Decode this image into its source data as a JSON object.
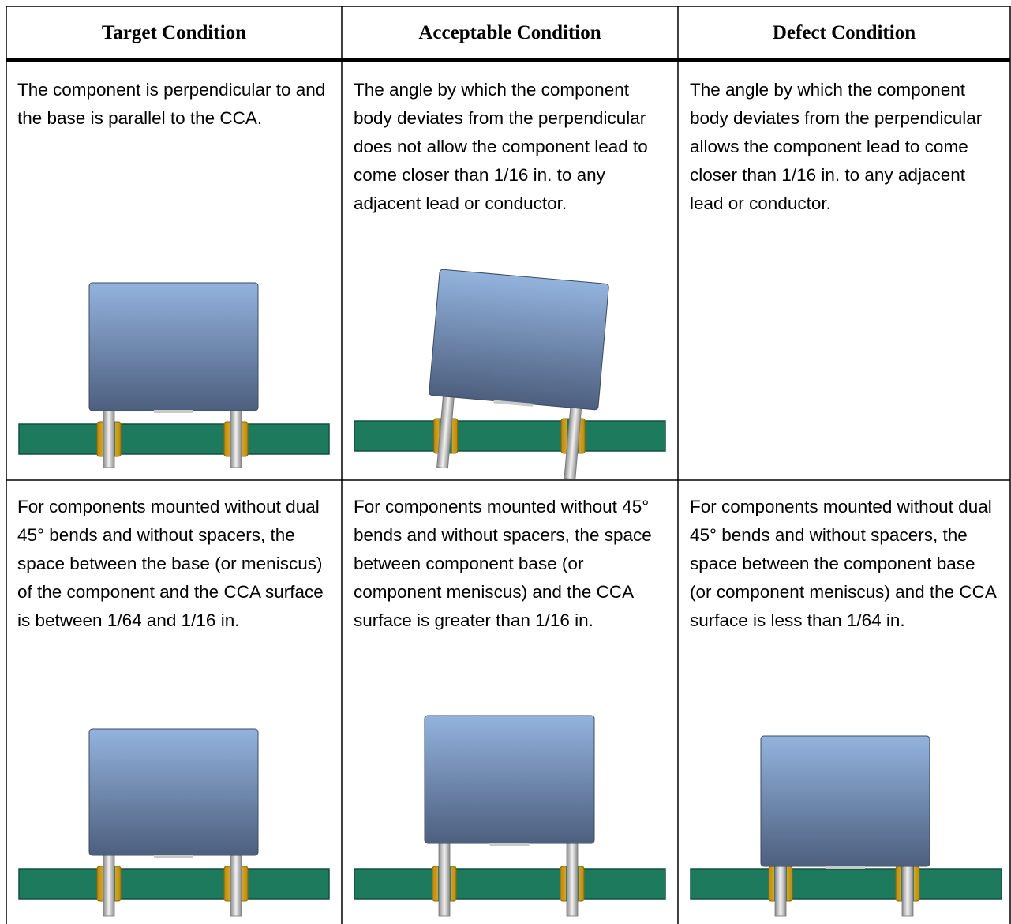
{
  "table": {
    "header": [
      "Target Condition",
      "Acceptable Condition",
      "Defect Condition"
    ],
    "rows": [
      [
        "The component is perpendicular to and the base is parallel to the CCA.",
        "The angle by which the component body deviates from the perpendicular does not allow the component lead to come closer than 1/16 in. to any adjacent lead or conductor.",
        "The angle by which the component body deviates from the perpendicular allows the component lead to come closer than 1/16 in. to any adjacent lead or conductor."
      ],
      [
        "For components mounted without dual 45° bends and without spacers, the space between the base (or meniscus) of the component and the CCA surface is between 1/64 and 1/16 in.",
        "For components mounted without 45° bends and without spacers, the space between component base (or component meniscus) and the CCA surface is greater than 1/16 in.",
        "For components mounted without dual 45° bends and without spacers, the space between the component base (or component meniscus) and the CCA surface is less than 1/64 in."
      ]
    ]
  }
}
